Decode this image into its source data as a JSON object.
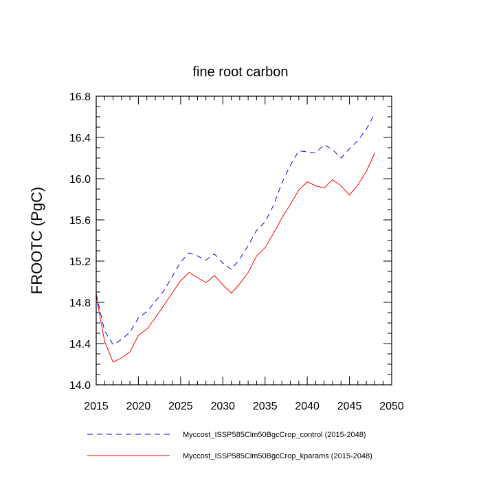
{
  "chart_data": {
    "type": "line",
    "title": "fine root carbon",
    "xlabel": "",
    "ylabel": "FROOTC  (PgC)",
    "xlim": [
      2015,
      2050
    ],
    "ylim": [
      14.0,
      16.8
    ],
    "x_ticks": [
      2015,
      2020,
      2025,
      2030,
      2035,
      2040,
      2045,
      2050
    ],
    "y_ticks": [
      14.0,
      14.4,
      14.8,
      15.2,
      15.6,
      16.0,
      16.4,
      16.8
    ],
    "x_tick_labels": [
      "2015",
      "2020",
      "2025",
      "2030",
      "2035",
      "2040",
      "2045",
      "2050"
    ],
    "y_tick_labels": [
      "14.0",
      "14.4",
      "14.8",
      "15.2",
      "15.6",
      "16.0",
      "16.4",
      "16.8"
    ],
    "grid": false,
    "legend_position": "bottom",
    "x": [
      2015,
      2016,
      2017,
      2018,
      2019,
      2020,
      2021,
      2022,
      2023,
      2024,
      2025,
      2026,
      2027,
      2028,
      2029,
      2030,
      2031,
      2032,
      2033,
      2034,
      2035,
      2036,
      2037,
      2038,
      2039,
      2040,
      2041,
      2042,
      2043,
      2044,
      2045,
      2046,
      2047,
      2048
    ],
    "series": [
      {
        "name": "Myccost_ISSP585Clm50BgcCrop_control (2015-2048)",
        "color": "#0000ff",
        "style": "dashed",
        "values": [
          14.88,
          14.52,
          14.39,
          14.44,
          14.51,
          14.65,
          14.71,
          14.81,
          14.91,
          15.05,
          15.19,
          15.28,
          15.25,
          15.21,
          15.27,
          15.18,
          15.12,
          15.22,
          15.35,
          15.5,
          15.58,
          15.74,
          15.96,
          16.13,
          16.27,
          16.26,
          16.25,
          16.33,
          16.28,
          16.2,
          16.29,
          16.37,
          16.48,
          16.63
        ]
      },
      {
        "name": "Myccost_ISSP585Clm50BgcCrop_kparams (2015-2048)",
        "color": "#ff0000",
        "style": "solid",
        "values": [
          14.86,
          14.42,
          14.22,
          14.26,
          14.32,
          14.48,
          14.54,
          14.65,
          14.77,
          14.89,
          15.01,
          15.09,
          15.04,
          14.99,
          15.06,
          14.97,
          14.89,
          14.98,
          15.09,
          15.25,
          15.33,
          15.47,
          15.62,
          15.75,
          15.89,
          15.97,
          15.93,
          15.91,
          15.99,
          15.93,
          15.84,
          15.94,
          16.07,
          16.25
        ]
      }
    ]
  }
}
